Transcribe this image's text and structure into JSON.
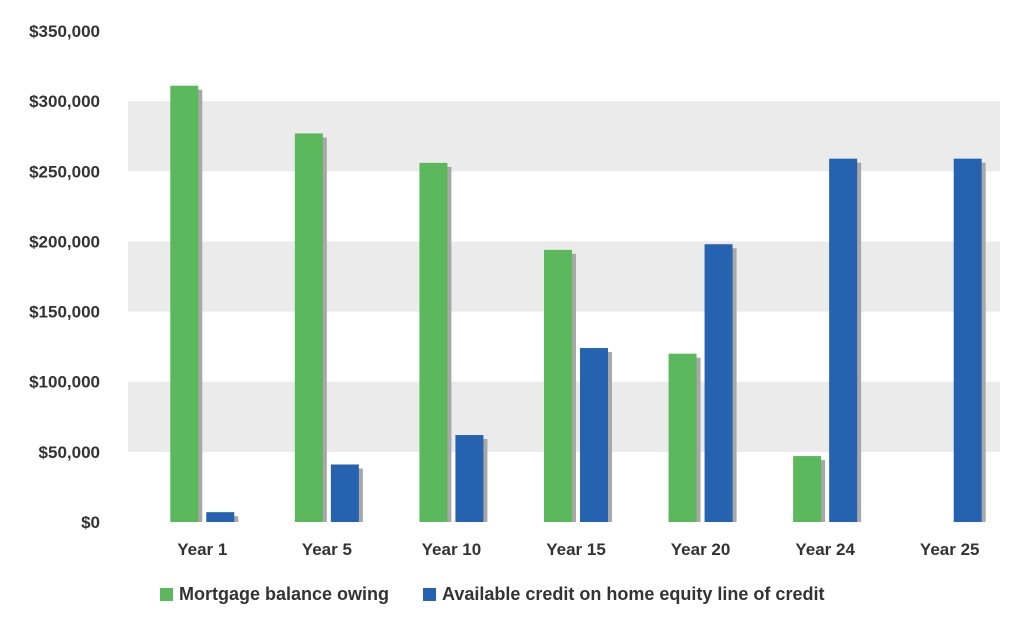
{
  "chart_data": {
    "type": "bar",
    "categories": [
      "Year 1",
      "Year 5",
      "Year 10",
      "Year 15",
      "Year 20",
      "Year 24",
      "Year 25"
    ],
    "series": [
      {
        "name": "Mortgage balance owing",
        "color": "#5cb85c",
        "values": [
          311000,
          277000,
          256000,
          194000,
          120000,
          47000,
          0
        ]
      },
      {
        "name": "Available credit on home equity line of credit",
        "color": "#2563b0",
        "values": [
          7000,
          41000,
          62000,
          124000,
          198000,
          259000,
          259000
        ]
      }
    ],
    "y_ticks": [
      "$0",
      "$50,000",
      "$100,000",
      "$150,000",
      "$200,000",
      "$250,000",
      "$300,000",
      "$350,000"
    ],
    "ylim": [
      0,
      350000
    ],
    "ytick_step": 50000,
    "title": "",
    "xlabel": "",
    "ylabel": "",
    "grid": "alternating horizontal bands",
    "band_color": "#ebebeb",
    "shadow_color": "#a8a8a8",
    "legend_position": "bottom"
  }
}
